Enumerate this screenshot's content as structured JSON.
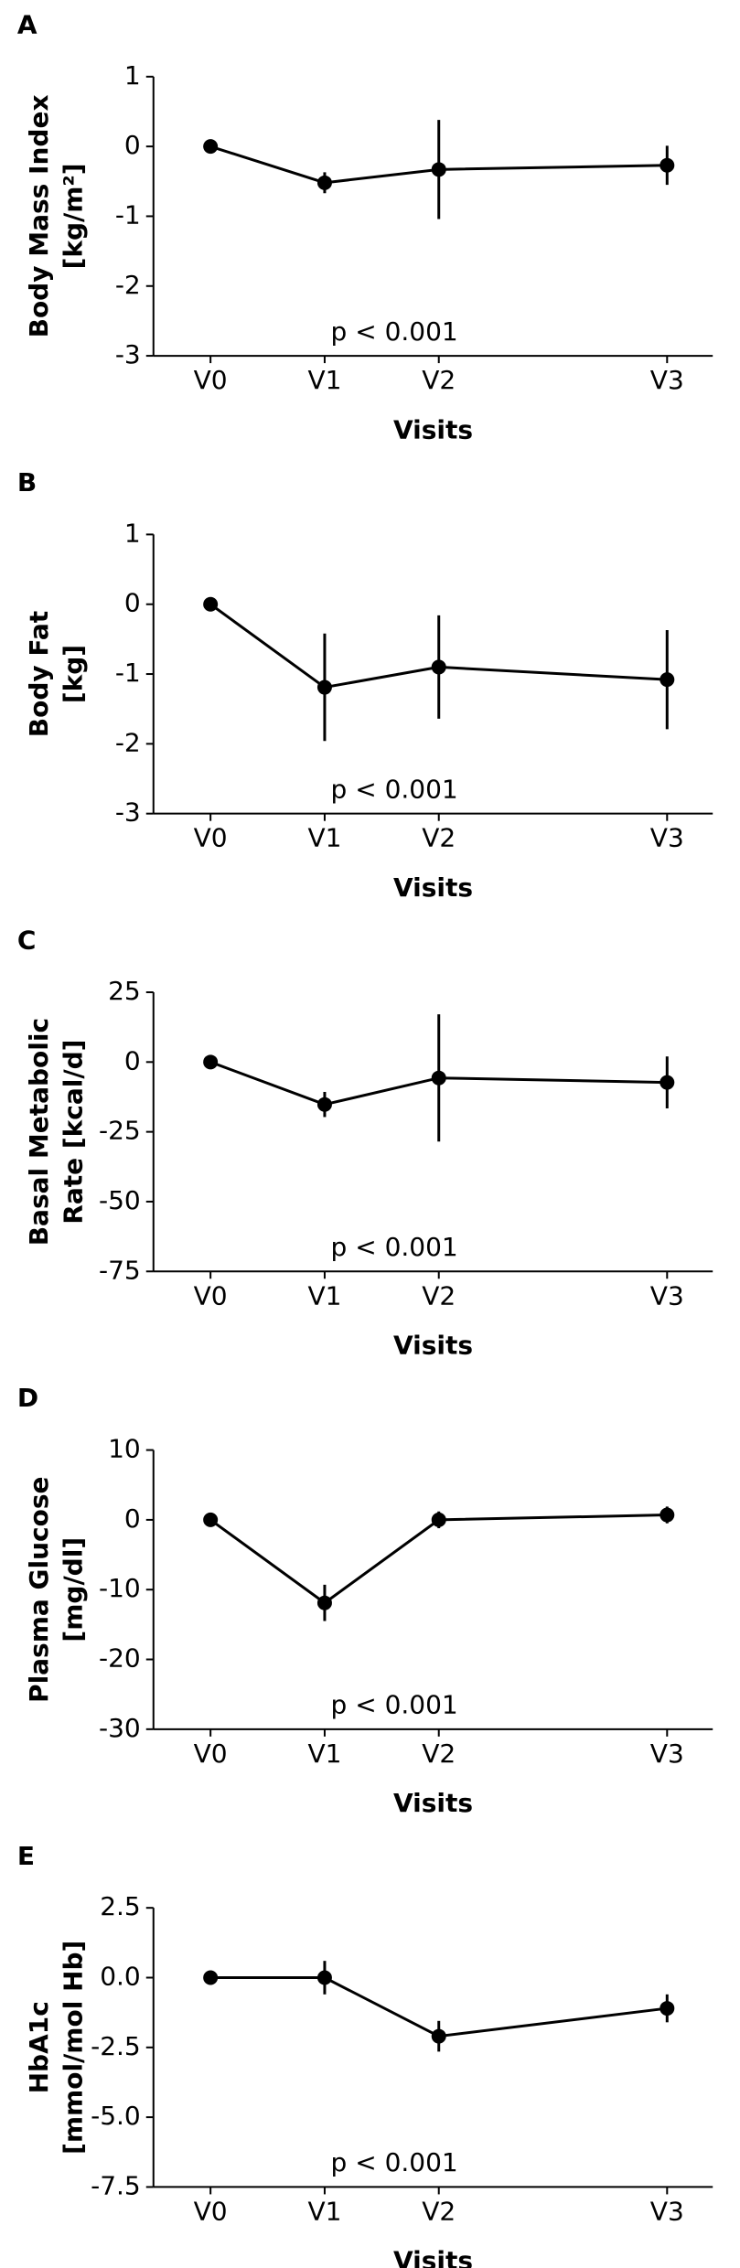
{
  "chart_data": [
    {
      "type": "line",
      "panel_label": "A",
      "ylabel": [
        "Body Mass Index",
        "[kg/m²]"
      ],
      "xlabel": "Visits",
      "annotation": "p < 0.001",
      "x": [
        0,
        1,
        2,
        4
      ],
      "xlim": [
        -0.5,
        4.4
      ],
      "xticks": [
        {
          "value": 0,
          "label": "V0"
        },
        {
          "value": 1,
          "label": "V1"
        },
        {
          "value": 2,
          "label": "V2"
        },
        {
          "value": 4,
          "label": "V3"
        }
      ],
      "ylim": [
        -3,
        1
      ],
      "yticks": [
        -3,
        -2,
        -1,
        0,
        1
      ],
      "series": [
        {
          "color": "#000000",
          "values": [
            0,
            -0.52,
            -0.33,
            -0.27
          ],
          "errors": [
            0,
            0.15,
            0.71,
            0.28
          ]
        }
      ]
    },
    {
      "type": "line",
      "panel_label": "B",
      "ylabel": [
        "Body Fat",
        "[kg]"
      ],
      "xlabel": "Visits",
      "annotation": "p < 0.001",
      "x": [
        0,
        1,
        2,
        4
      ],
      "xlim": [
        -0.5,
        4.4
      ],
      "xticks": [
        {
          "value": 0,
          "label": "V0"
        },
        {
          "value": 1,
          "label": "V1"
        },
        {
          "value": 2,
          "label": "V2"
        },
        {
          "value": 4,
          "label": "V3"
        }
      ],
      "ylim": [
        -3,
        1
      ],
      "yticks": [
        -3,
        -2,
        -1,
        0,
        1
      ],
      "series": [
        {
          "color": "#000000",
          "values": [
            0,
            -1.19,
            -0.9,
            -1.08
          ],
          "errors": [
            0,
            0.77,
            0.74,
            0.71
          ]
        }
      ]
    },
    {
      "type": "line",
      "panel_label": "C",
      "ylabel": [
        "Basal Metabolic",
        "Rate [kcal/d]"
      ],
      "xlabel": "Visits",
      "annotation": "p < 0.001",
      "x": [
        0,
        1,
        2,
        4
      ],
      "xlim": [
        -0.5,
        4.4
      ],
      "xticks": [
        {
          "value": 0,
          "label": "V0"
        },
        {
          "value": 1,
          "label": "V1"
        },
        {
          "value": 2,
          "label": "V2"
        },
        {
          "value": 4,
          "label": "V3"
        }
      ],
      "ylim": [
        -75,
        25
      ],
      "yticks": [
        -75,
        -50,
        -25,
        0,
        25
      ],
      "series": [
        {
          "color": "#000000",
          "values": [
            0,
            -15.2,
            -5.7,
            -7.3
          ],
          "errors": [
            0,
            4.5,
            22.8,
            9.3
          ]
        }
      ]
    },
    {
      "type": "line",
      "panel_label": "D",
      "ylabel": [
        "Plasma Glucose",
        "[mg/dl]"
      ],
      "xlabel": "Visits",
      "annotation": "p < 0.001",
      "x": [
        0,
        1,
        2,
        4
      ],
      "xlim": [
        -0.5,
        4.4
      ],
      "xticks": [
        {
          "value": 0,
          "label": "V0"
        },
        {
          "value": 1,
          "label": "V1"
        },
        {
          "value": 2,
          "label": "V2"
        },
        {
          "value": 4,
          "label": "V3"
        }
      ],
      "ylim": [
        -30,
        10
      ],
      "yticks": [
        -30,
        -20,
        -10,
        0,
        10
      ],
      "series": [
        {
          "color": "#000000",
          "values": [
            0,
            -11.9,
            0,
            0.7
          ],
          "errors": [
            0,
            2.6,
            1.2,
            1.2
          ]
        }
      ]
    },
    {
      "type": "line",
      "panel_label": "E",
      "ylabel": [
        "HbA1c",
        "[mmol/mol Hb]"
      ],
      "xlabel": "Visits",
      "annotation": "p < 0.001",
      "x": [
        0,
        1,
        2,
        4
      ],
      "xlim": [
        -0.5,
        4.4
      ],
      "xticks": [
        {
          "value": 0,
          "label": "V0"
        },
        {
          "value": 1,
          "label": "V1"
        },
        {
          "value": 2,
          "label": "V2"
        },
        {
          "value": 4,
          "label": "V3"
        }
      ],
      "ylim": [
        -7.5,
        2.5
      ],
      "yticks": [
        -7.5,
        {
          "value": -5,
          "label": "-5.0"
        },
        -2.5,
        {
          "value": 0,
          "label": "0.0"
        },
        2.5
      ],
      "series": [
        {
          "color": "#000000",
          "values": [
            0,
            0,
            -2.1,
            -1.1
          ],
          "errors": [
            0,
            0.6,
            0.55,
            0.5
          ]
        }
      ]
    }
  ]
}
